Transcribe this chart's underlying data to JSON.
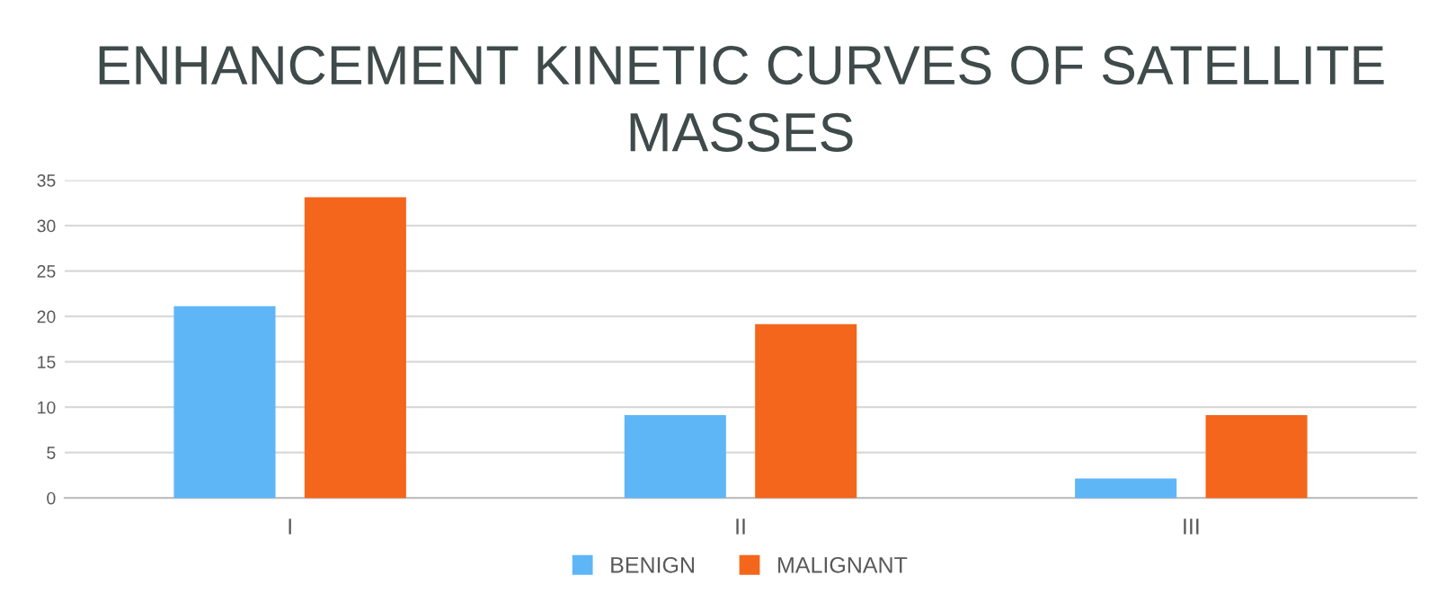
{
  "chart_data": {
    "type": "bar",
    "title": "ENHANCEMENT KINETIC CURVES OF SATELLITE MASSES",
    "categories": [
      "I",
      "II",
      "III"
    ],
    "series": [
      {
        "name": "BENIGN",
        "color": "#5fb6f7",
        "values": [
          21,
          9,
          2
        ]
      },
      {
        "name": "MALIGNANT",
        "color": "#f4661b",
        "values": [
          33,
          19,
          9
        ]
      }
    ],
    "ylim": [
      0,
      35
    ],
    "yticks": [
      0,
      5,
      10,
      15,
      20,
      25,
      30,
      35
    ],
    "grid": "y",
    "legend": "bottom"
  }
}
